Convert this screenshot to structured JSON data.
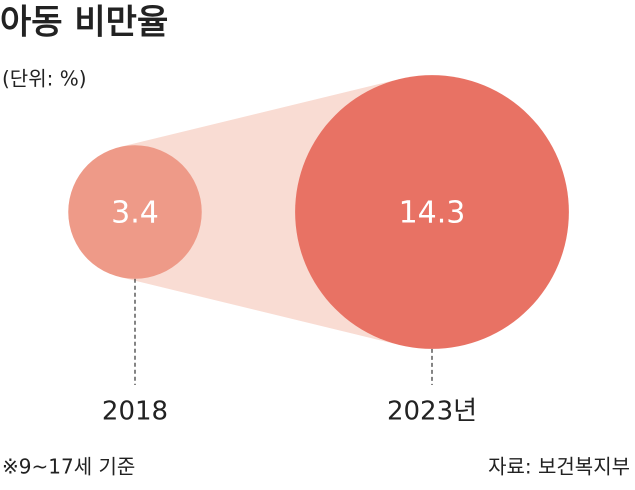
{
  "chart_data": {
    "type": "bubble",
    "title": "아동 비만율",
    "subtitle": "(단위: %)",
    "categories": [
      "2018",
      "2023년"
    ],
    "values": [
      3.4,
      14.3
    ],
    "colors": [
      "#ee9a88",
      "#e87264"
    ],
    "connector_color": "#f9dcd3",
    "note": "※9~17세 기준",
    "source": "자료: 보건복지부"
  }
}
